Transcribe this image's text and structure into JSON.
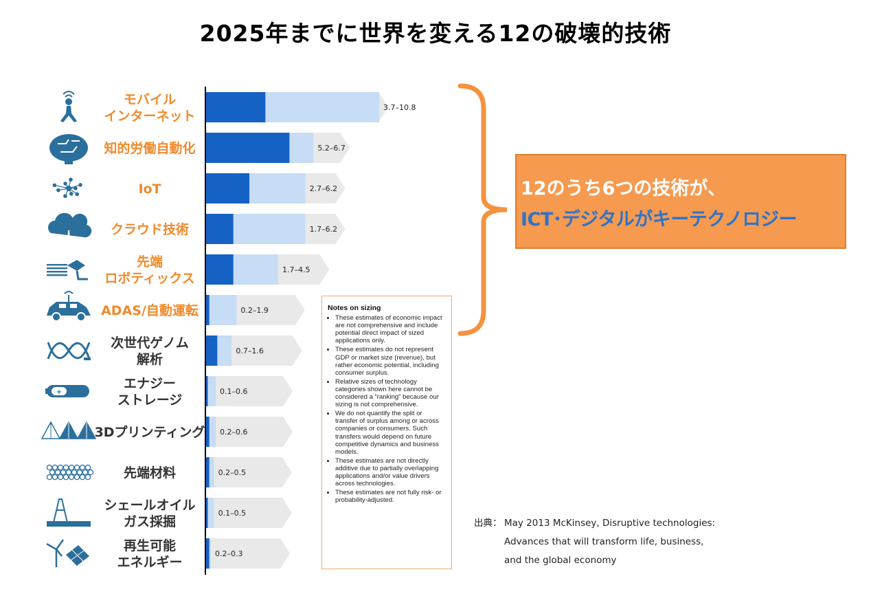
{
  "title": "2025年までに世界を変える12の破壊的技術",
  "chart_data": {
    "type": "bar",
    "orientation": "horizontal",
    "stacked_range": true,
    "categories": [
      {
        "label_lines": [
          "モバイル",
          "インターネット"
        ],
        "icon": "walking-person-signal-icon",
        "label_color": "#f08a2c"
      },
      {
        "label_lines": [
          "知的労働自動化"
        ],
        "icon": "brain-circuit-icon",
        "label_color": "#f08a2c"
      },
      {
        "label_lines": [
          "IoT"
        ],
        "icon": "network-dots-icon",
        "label_color": "#f08a2c"
      },
      {
        "label_lines": [
          "クラウド技術"
        ],
        "icon": "cloud-icon",
        "label_color": "#f08a2c"
      },
      {
        "label_lines": [
          "先端",
          "ロボティックス"
        ],
        "icon": "robot-arm-icon",
        "label_color": "#f08a2c"
      },
      {
        "label_lines": [
          "ADAS/自動運転"
        ],
        "icon": "autonomous-car-icon",
        "label_color": "#f08a2c"
      },
      {
        "label_lines": [
          "次世代ゲノム",
          "解析"
        ],
        "icon": "dna-icon",
        "label_color": "#333333"
      },
      {
        "label_lines": [
          "エナジー",
          "ストレージ"
        ],
        "icon": "battery-icon",
        "label_color": "#333333"
      },
      {
        "label_lines": [
          "3Dプリンティング"
        ],
        "icon": "pyramid-mesh-icon",
        "label_color": "#333333"
      },
      {
        "label_lines": [
          "先端材料"
        ],
        "icon": "nanotube-icon",
        "label_color": "#333333"
      },
      {
        "label_lines": [
          "シェールオイル",
          "ガス採掘"
        ],
        "icon": "drilling-rig-icon",
        "label_color": "#333333"
      },
      {
        "label_lines": [
          "再生可能",
          "エネルギー"
        ],
        "icon": "wind-solar-icon",
        "label_color": "#333333"
      }
    ],
    "series": [
      {
        "low": 3.7,
        "high": 10.8,
        "label": "3.7–10.8"
      },
      {
        "low": 5.2,
        "high": 6.7,
        "label": "5.2–6.7"
      },
      {
        "low": 2.7,
        "high": 6.2,
        "label": "2.7–6.2"
      },
      {
        "low": 1.7,
        "high": 6.2,
        "label": "1.7–6.2"
      },
      {
        "low": 1.7,
        "high": 4.5,
        "label": "1.7–4.5"
      },
      {
        "low": 0.2,
        "high": 1.9,
        "label": "0.2–1.9"
      },
      {
        "low": 0.7,
        "high": 1.6,
        "label": "0.7–1.6"
      },
      {
        "low": 0.1,
        "high": 0.6,
        "label": "0.1–0.6"
      },
      {
        "low": 0.2,
        "high": 0.6,
        "label": "0.2–0.6"
      },
      {
        "low": 0.2,
        "high": 0.5,
        "label": "0.2–0.5"
      },
      {
        "low": 0.1,
        "high": 0.5,
        "label": "0.1–0.5"
      },
      {
        "low": 0.2,
        "high": 0.3,
        "label": "0.2–0.3"
      }
    ],
    "xlim": [
      0,
      10.8
    ],
    "colors": {
      "low": "#1662c4",
      "high": "#c7dcf5",
      "arrow": "#e9e9e9",
      "axis": "#000000",
      "bracket": "#f5923e"
    }
  },
  "notes": {
    "title": "Notes on sizing",
    "items": [
      "These estimates of economic impact are not comprehensive and include potential direct impact of sized applications only.",
      "These estimates do not represent GDP or market size (revenue), but rather economic potential, including consumer surplus.",
      "Relative sizes of technology categories shown here cannot be considered a “ranking” because our sizing is not comprehensive.",
      "We do not quantify the split or transfer of surplus among or across companies or consumers. Such transfers would depend on future competitive dynamics and business models.",
      "These estimates are not directly additive due to partially overlapping applications and/or value drivers across technologies.",
      "These estimates are not fully risk- or probability-adjusted."
    ]
  },
  "callout": {
    "line1": "12のうち6つの技術が、",
    "line2": "ICT･デジタルがキーテクノロジー"
  },
  "source": {
    "prefix": "出典：",
    "lines": [
      "May 2013 McKinsey, Disruptive technologies:",
      "Advances that will transform life, business,",
      "and the global economy"
    ]
  }
}
